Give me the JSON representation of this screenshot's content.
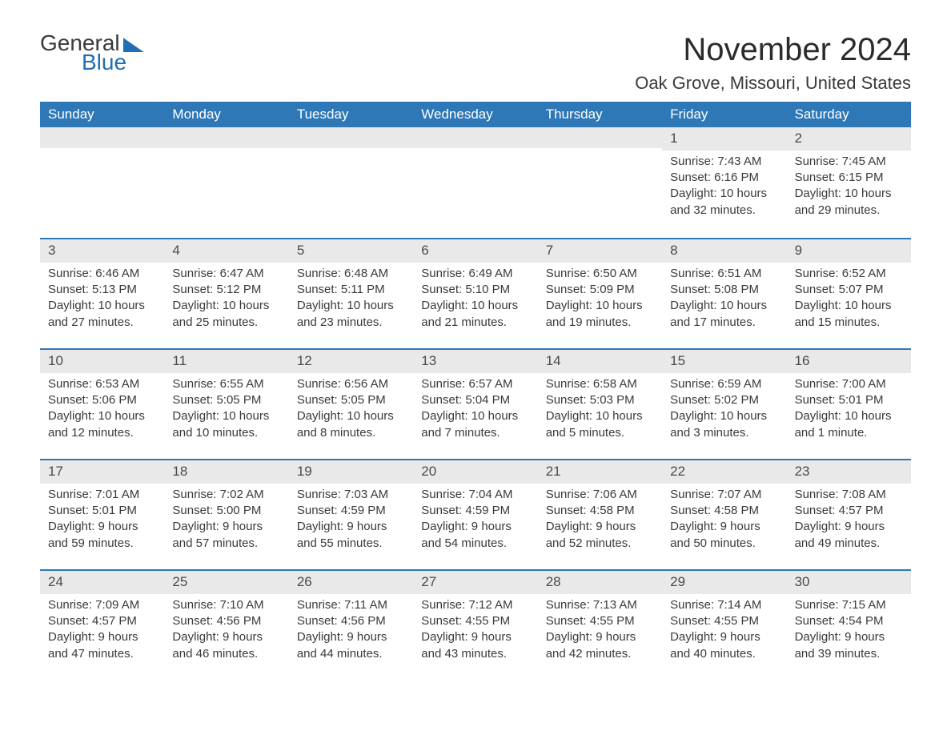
{
  "brand": {
    "word1": "General",
    "word2": "Blue"
  },
  "title": "November 2024",
  "location": "Oak Grove, Missouri, United States",
  "colors": {
    "header_bg": "#2f78b7",
    "header_text": "#ffffff",
    "daynum_bg": "#e9e9e9",
    "rule": "#2f78b7",
    "text": "#3a3a3a",
    "page_bg": "#ffffff",
    "brand_blue": "#1f6fb2"
  },
  "typography": {
    "title_fontsize": 40,
    "location_fontsize": 22,
    "header_fontsize": 17,
    "cell_fontsize": 15
  },
  "dayNames": [
    "Sunday",
    "Monday",
    "Tuesday",
    "Wednesday",
    "Thursday",
    "Friday",
    "Saturday"
  ],
  "labels": {
    "sunrise": "Sunrise:",
    "sunset": "Sunset:",
    "daylight": "Daylight:"
  },
  "weeks": [
    [
      null,
      null,
      null,
      null,
      null,
      {
        "n": "1",
        "sunrise": "7:43 AM",
        "sunset": "6:16 PM",
        "daylight": "10 hours and 32 minutes."
      },
      {
        "n": "2",
        "sunrise": "7:45 AM",
        "sunset": "6:15 PM",
        "daylight": "10 hours and 29 minutes."
      }
    ],
    [
      {
        "n": "3",
        "sunrise": "6:46 AM",
        "sunset": "5:13 PM",
        "daylight": "10 hours and 27 minutes."
      },
      {
        "n": "4",
        "sunrise": "6:47 AM",
        "sunset": "5:12 PM",
        "daylight": "10 hours and 25 minutes."
      },
      {
        "n": "5",
        "sunrise": "6:48 AM",
        "sunset": "5:11 PM",
        "daylight": "10 hours and 23 minutes."
      },
      {
        "n": "6",
        "sunrise": "6:49 AM",
        "sunset": "5:10 PM",
        "daylight": "10 hours and 21 minutes."
      },
      {
        "n": "7",
        "sunrise": "6:50 AM",
        "sunset": "5:09 PM",
        "daylight": "10 hours and 19 minutes."
      },
      {
        "n": "8",
        "sunrise": "6:51 AM",
        "sunset": "5:08 PM",
        "daylight": "10 hours and 17 minutes."
      },
      {
        "n": "9",
        "sunrise": "6:52 AM",
        "sunset": "5:07 PM",
        "daylight": "10 hours and 15 minutes."
      }
    ],
    [
      {
        "n": "10",
        "sunrise": "6:53 AM",
        "sunset": "5:06 PM",
        "daylight": "10 hours and 12 minutes."
      },
      {
        "n": "11",
        "sunrise": "6:55 AM",
        "sunset": "5:05 PM",
        "daylight": "10 hours and 10 minutes."
      },
      {
        "n": "12",
        "sunrise": "6:56 AM",
        "sunset": "5:05 PM",
        "daylight": "10 hours and 8 minutes."
      },
      {
        "n": "13",
        "sunrise": "6:57 AM",
        "sunset": "5:04 PM",
        "daylight": "10 hours and 7 minutes."
      },
      {
        "n": "14",
        "sunrise": "6:58 AM",
        "sunset": "5:03 PM",
        "daylight": "10 hours and 5 minutes."
      },
      {
        "n": "15",
        "sunrise": "6:59 AM",
        "sunset": "5:02 PM",
        "daylight": "10 hours and 3 minutes."
      },
      {
        "n": "16",
        "sunrise": "7:00 AM",
        "sunset": "5:01 PM",
        "daylight": "10 hours and 1 minute."
      }
    ],
    [
      {
        "n": "17",
        "sunrise": "7:01 AM",
        "sunset": "5:01 PM",
        "daylight": "9 hours and 59 minutes."
      },
      {
        "n": "18",
        "sunrise": "7:02 AM",
        "sunset": "5:00 PM",
        "daylight": "9 hours and 57 minutes."
      },
      {
        "n": "19",
        "sunrise": "7:03 AM",
        "sunset": "4:59 PM",
        "daylight": "9 hours and 55 minutes."
      },
      {
        "n": "20",
        "sunrise": "7:04 AM",
        "sunset": "4:59 PM",
        "daylight": "9 hours and 54 minutes."
      },
      {
        "n": "21",
        "sunrise": "7:06 AM",
        "sunset": "4:58 PM",
        "daylight": "9 hours and 52 minutes."
      },
      {
        "n": "22",
        "sunrise": "7:07 AM",
        "sunset": "4:58 PM",
        "daylight": "9 hours and 50 minutes."
      },
      {
        "n": "23",
        "sunrise": "7:08 AM",
        "sunset": "4:57 PM",
        "daylight": "9 hours and 49 minutes."
      }
    ],
    [
      {
        "n": "24",
        "sunrise": "7:09 AM",
        "sunset": "4:57 PM",
        "daylight": "9 hours and 47 minutes."
      },
      {
        "n": "25",
        "sunrise": "7:10 AM",
        "sunset": "4:56 PM",
        "daylight": "9 hours and 46 minutes."
      },
      {
        "n": "26",
        "sunrise": "7:11 AM",
        "sunset": "4:56 PM",
        "daylight": "9 hours and 44 minutes."
      },
      {
        "n": "27",
        "sunrise": "7:12 AM",
        "sunset": "4:55 PM",
        "daylight": "9 hours and 43 minutes."
      },
      {
        "n": "28",
        "sunrise": "7:13 AM",
        "sunset": "4:55 PM",
        "daylight": "9 hours and 42 minutes."
      },
      {
        "n": "29",
        "sunrise": "7:14 AM",
        "sunset": "4:55 PM",
        "daylight": "9 hours and 40 minutes."
      },
      {
        "n": "30",
        "sunrise": "7:15 AM",
        "sunset": "4:54 PM",
        "daylight": "9 hours and 39 minutes."
      }
    ]
  ]
}
